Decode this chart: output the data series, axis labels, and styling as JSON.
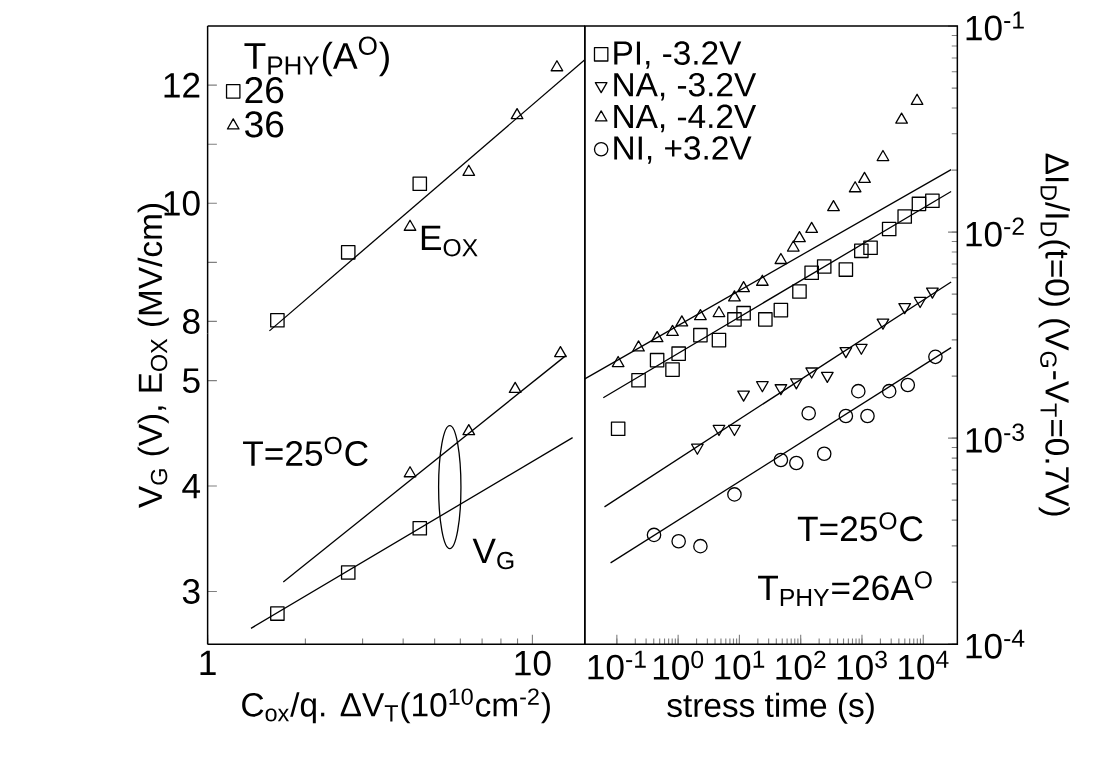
{
  "chart_data": [
    {
      "type": "scatter",
      "log": "x",
      "xlim": [
        1,
        14.5
      ],
      "xticks": [
        1,
        10
      ],
      "ylim": [
        7.8,
        13
      ],
      "yticks": [
        8,
        {
          "value": 9,
          "label": null
        },
        10,
        {
          "value": 11,
          "label": null
        },
        12
      ],
      "tick_labels": "y",
      "legend": "top left",
      "legend_title": "T$_{PHY}$(A$^{O}$)",
      "annotations": [
        "E$_{OX}$"
      ],
      "series": [
        {
          "name": "26",
          "color": "#000000",
          "marker": "square",
          "x": [
            1.64,
            2.71,
            4.5
          ],
          "values": [
            8.02,
            9.17,
            10.33
          ]
        },
        {
          "name": "36",
          "color": "#000000",
          "marker": "triangle",
          "x": [
            4.2,
            6.37,
            8.97,
            11.9
          ],
          "values": [
            9.6,
            10.53,
            11.49,
            12.3
          ]
        },
        {
          "type": "line",
          "color": "#000000",
          "marker": "none",
          "x": [
            1.55,
            14.5
          ],
          "values": [
            7.84,
            12.43
          ]
        }
      ]
    },
    {
      "type": "scatter",
      "log": "x",
      "xlim": [
        1,
        14.5
      ],
      "xticks": [
        1,
        10
      ],
      "ylim": [
        2.5,
        5.45
      ],
      "yticks": [
        3,
        4,
        5
      ],
      "xlabel": "C$_{ox}$/q. ΔV$_{T}$(10$^{10}$cm$^{-2}$)",
      "ylabel": "V$_{G}$ (V), E$_{OX}$ (MV/cm)",
      "annotations": [
        "T=25$^{O}$C",
        "V$_{G}$"
      ],
      "series": [
        {
          "color": "#000000",
          "marker": "square",
          "x": [
            1.64,
            2.71,
            4.5
          ],
          "values": [
            2.79,
            3.18,
            3.6
          ]
        },
        {
          "color": "#000000",
          "marker": "triangle",
          "x": [
            4.2,
            6.37,
            8.85,
            12.2
          ],
          "values": [
            4.12,
            4.52,
            4.92,
            5.26
          ]
        },
        {
          "type": "line",
          "color": "#000000",
          "marker": "none",
          "x": [
            1.36,
            13.3
          ],
          "values": [
            2.65,
            4.46
          ]
        },
        {
          "type": "line",
          "color": "#000000",
          "marker": "none",
          "x": [
            1.71,
            12.7
          ],
          "values": [
            3.09,
            5.24
          ]
        }
      ]
    },
    {
      "type": "scatter",
      "log": "xy",
      "xlim": [
        0.03,
        36000
      ],
      "ylim": [
        0.0001,
        0.1
      ],
      "xlabel": "stress time (s)",
      "ylabel": "ΔI$_{D}$/I$_{D}$(t=0) (V$_{G}$-V$_{T}$=0.7V)",
      "legend": "top left",
      "annotations": [
        "T=25$^{O}$C",
        "T$_{PHY}$=26A$^{O}$"
      ],
      "xticks": [
        {
          "value": 0.1,
          "label": "10$^{-1}$"
        },
        {
          "value": 1,
          "label": "10$^{0}$"
        },
        {
          "value": 10,
          "label": "10$^{1}$"
        },
        {
          "value": 100,
          "label": "10$^{2}$"
        },
        {
          "value": 1000,
          "label": "10$^{3}$"
        },
        {
          "value": 10000,
          "label": "10$^{4}$"
        }
      ],
      "yticks": [
        {
          "value": 0.0001,
          "label": "10$^{-4}$"
        },
        {
          "value": 0.001,
          "label": "10$^{-3}$"
        },
        {
          "value": 0.01,
          "label": "10$^{-2}$"
        },
        {
          "value": 0.1,
          "label": "10$^{-1}$"
        }
      ],
      "series": [
        {
          "name": "PI, -3.2V",
          "color": "#000000",
          "marker": "square",
          "x": [
            0.105,
            0.226,
            0.454,
            0.81,
            1.02,
            2.31,
            4.64,
            8.3,
            11.7,
            26.5,
            47.5,
            95.5,
            151,
            242,
            546,
            977,
            1380,
            2780,
            4980,
            8510,
            14100
          ],
          "values": [
            0.00111,
            0.00191,
            0.00239,
            0.00215,
            0.00257,
            0.00316,
            0.00299,
            0.00377,
            0.00404,
            0.00377,
            0.00418,
            0.00515,
            0.00635,
            0.00681,
            0.00658,
            0.00811,
            0.0084,
            0.01035,
            0.0119,
            0.0137,
            0.0142
          ]
        },
        {
          "name": "NA, -3.2V",
          "color": "#000000",
          "marker": "triangle-down",
          "x": [
            2.06,
            4.64,
            8.3,
            11.7,
            23.7,
            47.5,
            85,
            151,
            272,
            546,
            977,
            2200,
            4980,
            8900,
            14100
          ],
          "values": [
            0.0009,
            0.00111,
            0.00111,
            0.00163,
            0.00181,
            0.00175,
            0.00187,
            0.00211,
            0.00201,
            0.00265,
            0.00275,
            0.00364,
            0.00433,
            0.00464,
            0.00515
          ]
        },
        {
          "name": "NA, -4.2V",
          "color": "#000000",
          "marker": "triangle",
          "x": [
            0.105,
            0.226,
            0.454,
            0.81,
            1.15,
            2.31,
            4.64,
            8.3,
            11.7,
            23.7,
            47.5,
            75.7,
            95.5,
            151,
            343,
            774,
            1100,
            2200,
            4430,
            7930
          ],
          "values": [
            0.00231,
            0.00275,
            0.00305,
            0.00327,
            0.00364,
            0.0039,
            0.00404,
            0.00481,
            0.00534,
            0.00573,
            0.00731,
            0.0084,
            0.00933,
            0.01035,
            0.0132,
            0.0163,
            0.0181,
            0.0231,
            0.0351,
            0.0433
          ]
        },
        {
          "name": "NI, +3.2V",
          "color": "#000000",
          "marker": "circle",
          "x": [
            0.404,
            1.02,
            2.31,
            8.3,
            47.5,
            85,
            135,
            242,
            546,
            871,
            1230,
            2780,
            5590,
            15800
          ],
          "values": [
            0.000339,
            0.000316,
            0.000299,
            0.000533,
            0.000783,
            0.000757,
            0.00132,
            0.00084,
            0.00128,
            0.00169,
            0.00128,
            0.00169,
            0.00181,
            0.00248
          ]
        },
        {
          "type": "line",
          "color": "#000000",
          "marker": "none",
          "x": [
            0.06,
            28500
          ],
          "values": [
            0.00157,
            0.01575
          ]
        },
        {
          "type": "line",
          "color": "#000000",
          "marker": "none",
          "x": [
            0.03,
            28500
          ],
          "values": [
            0.00194,
            0.0201
          ]
        },
        {
          "type": "line",
          "color": "#000000",
          "marker": "none",
          "x": [
            0.0628,
            28500
          ],
          "values": [
            0.000464,
            0.00573
          ]
        },
        {
          "type": "line",
          "color": "#000000",
          "marker": "none",
          "x": [
            0.079,
            28500
          ],
          "values": [
            0.000248,
            0.00275
          ]
        }
      ]
    }
  ]
}
